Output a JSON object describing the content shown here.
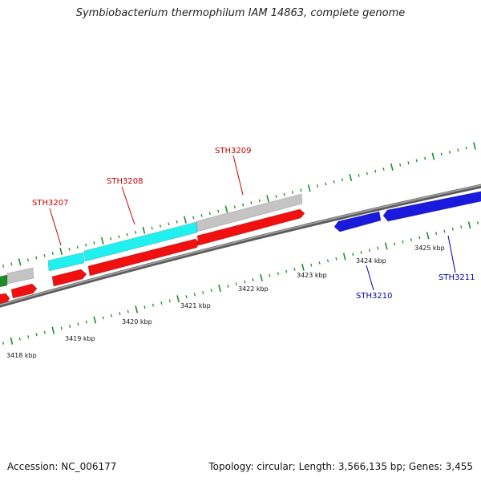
{
  "title": "Symbiobacterium thermophilum IAM 14863, complete genome",
  "footer": {
    "accession": "Accession: NC_006177",
    "summary": "Topology: circular; Length: 3,566,135 bp; Genes: 3,455"
  },
  "colors": {
    "forward_cds": "#f01010",
    "reverse_cds": "#1a1adc",
    "cyan_feature": "#20f0f0",
    "grey_feature": "#c4c4c4",
    "green_feature": "#1f8a2a",
    "tick": "#1f8a2a",
    "backbone": "#8e8e8e",
    "forward_label": "#cc0000",
    "reverse_label": "#0000aa"
  },
  "scale_labels": [
    "3418 kbp",
    "3419 kbp",
    "3420 kbp",
    "3421 kbp",
    "3422 kbp",
    "3423 kbp",
    "3424 kbp",
    "3425 kbp"
  ],
  "gene_labels": [
    {
      "text": "STH3207",
      "strand": "forward"
    },
    {
      "text": "STH3208",
      "strand": "forward"
    },
    {
      "text": "STH3209",
      "strand": "forward"
    },
    {
      "text": "STH3210",
      "strand": "reverse"
    },
    {
      "text": "STH3211",
      "strand": "reverse"
    }
  ]
}
